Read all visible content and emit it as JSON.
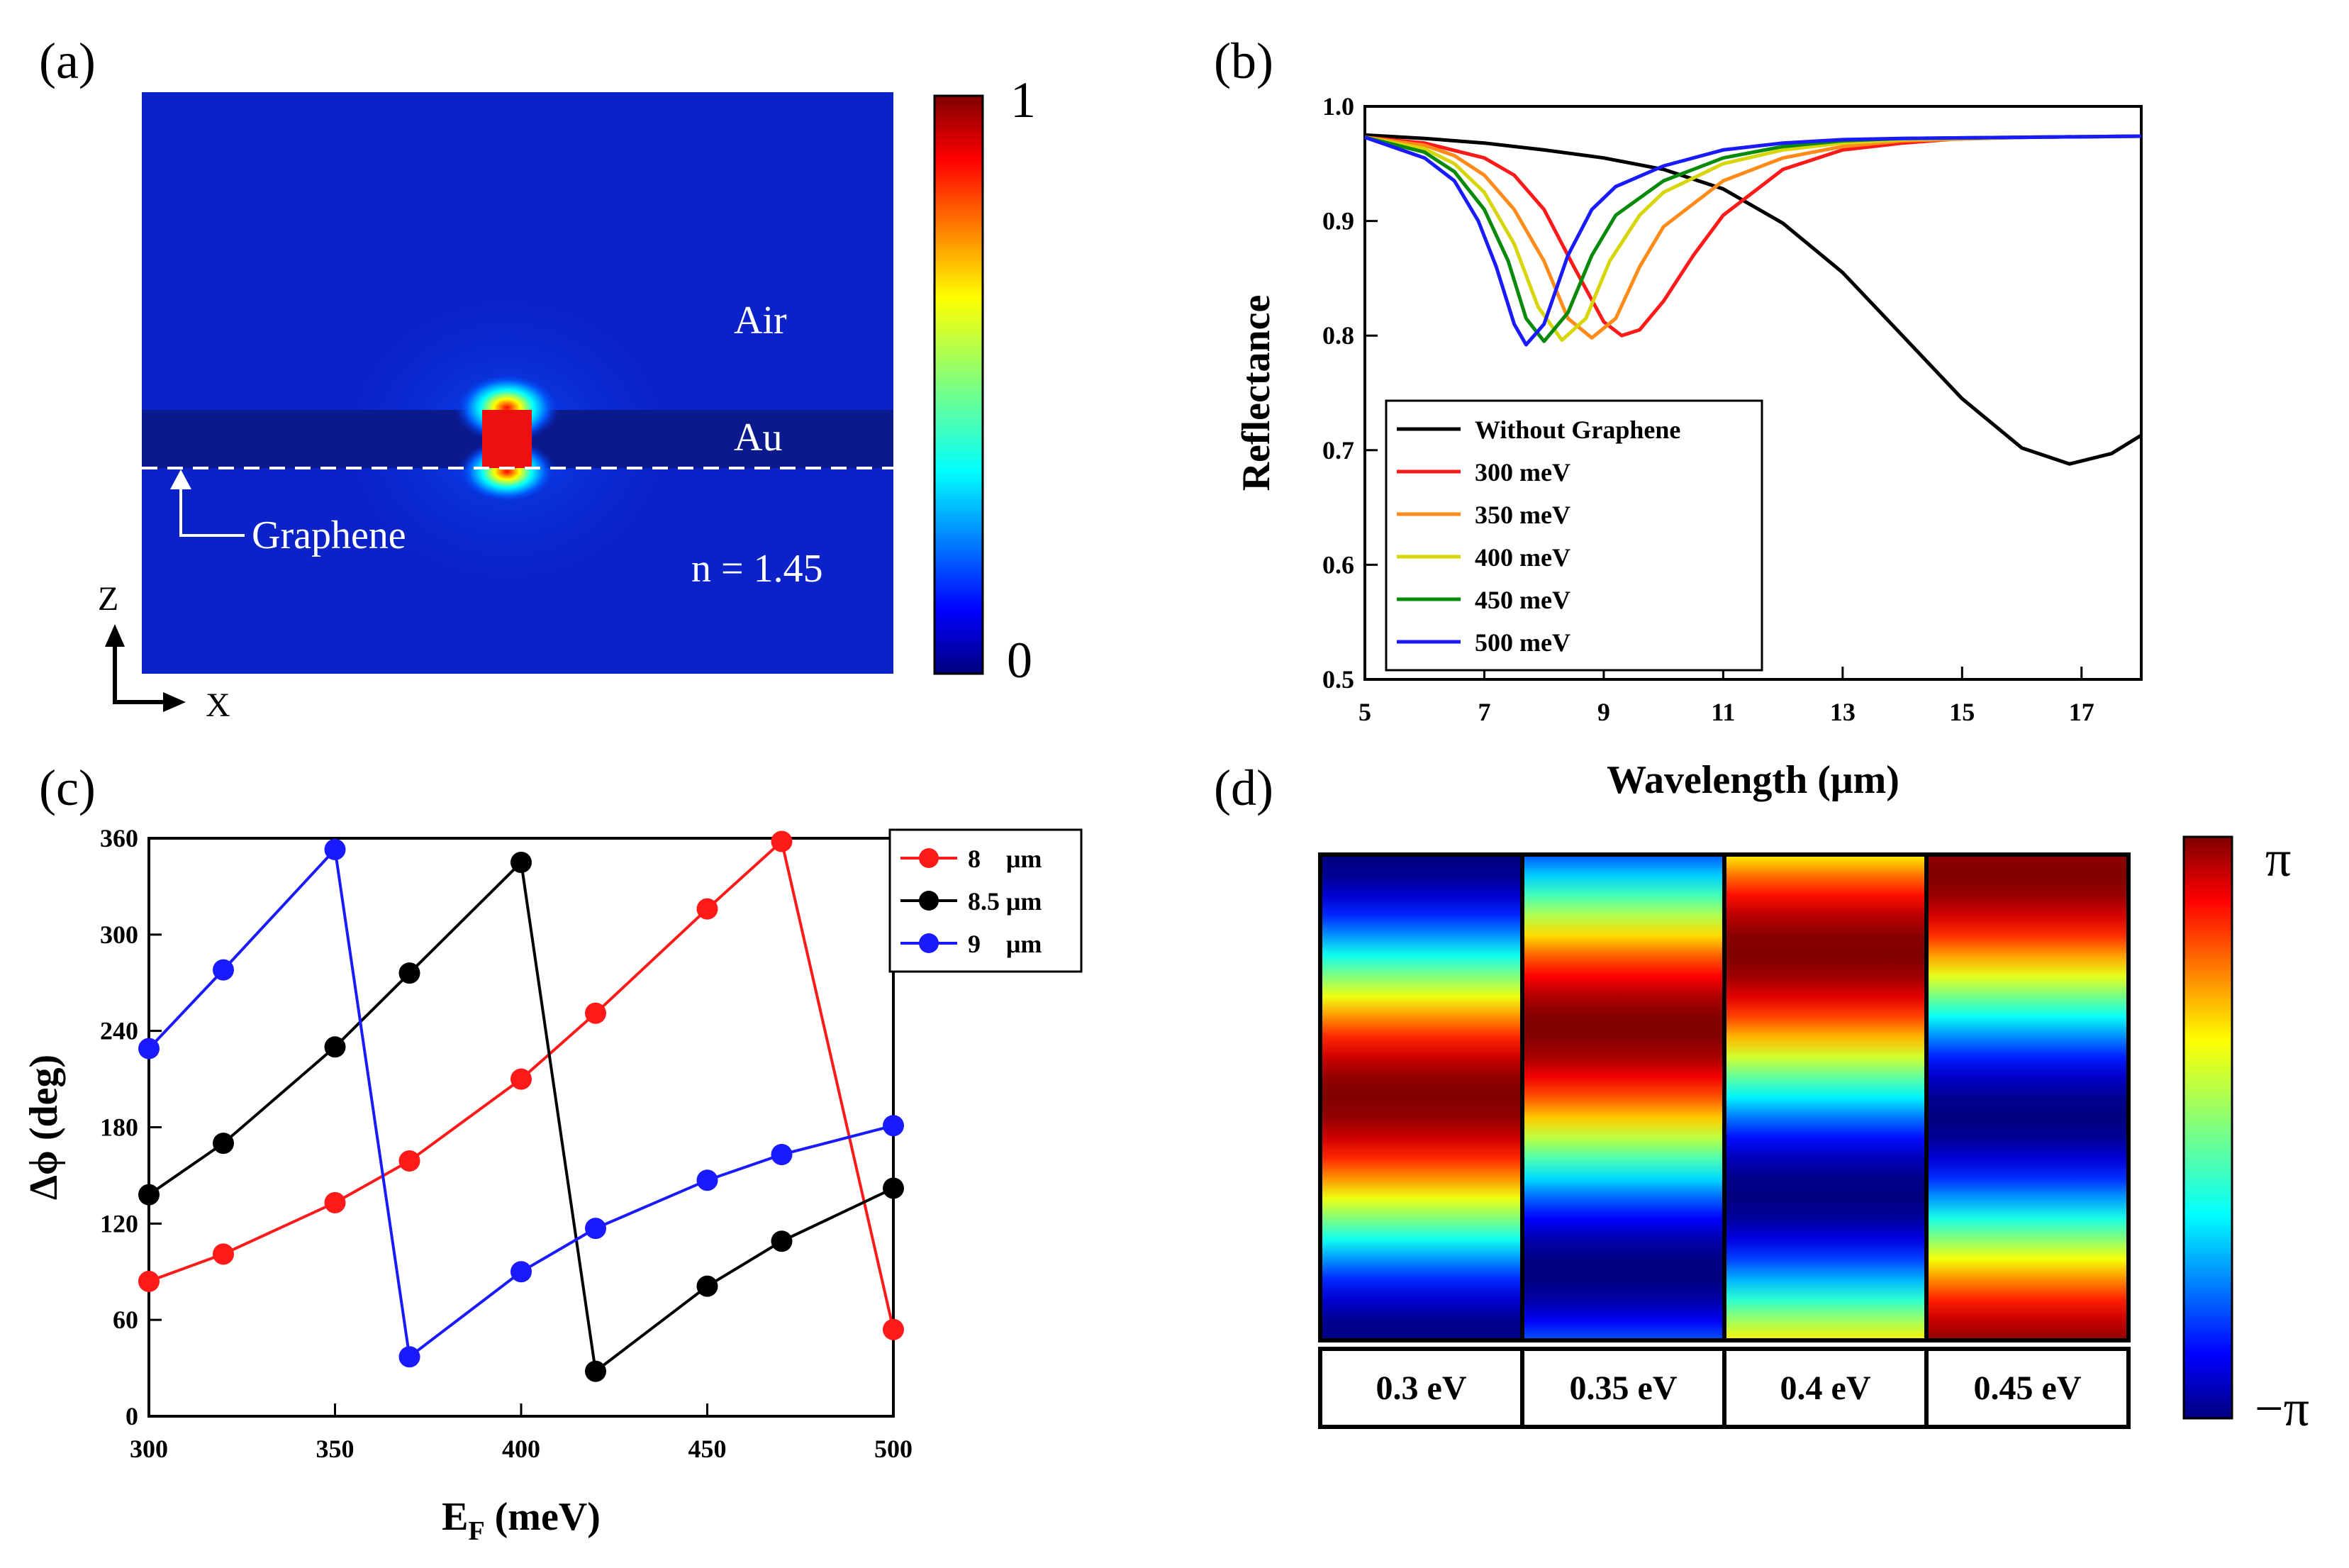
{
  "colors": {
    "black": "#000000",
    "red": "#ff1a1a",
    "orange": "#ff8c1a",
    "yellow": "#d6d60a",
    "green": "#0a8a0a",
    "blue": "#1a1aff",
    "field_bg": "#0a22c8",
    "au_band": "#0a1a8c"
  },
  "panel_a": {
    "label": "(a)",
    "air": "Air",
    "au": "Au",
    "graphene": "Graphene",
    "substrate": "n = 1.45",
    "axis_z": "Z",
    "axis_x": "X",
    "colorbar_max": "1",
    "colorbar_min": "0"
  },
  "panel_d": {
    "label": "(d)",
    "colorbar_max": "π",
    "colorbar_min": "−π",
    "columns": [
      {
        "label": "0.3 eV",
        "phase_offset": 0.0
      },
      {
        "label": "0.35 eV",
        "phase_offset": 0.9
      },
      {
        "label": "0.4 eV",
        "phase_offset": 1.9
      },
      {
        "label": "0.45 eV",
        "phase_offset": 2.9
      }
    ]
  },
  "chart_data": [
    {
      "panel": "(b)",
      "type": "line",
      "title": "",
      "xlabel": "Wavelength (μm)",
      "ylabel": "Reflectance",
      "xlim": [
        5,
        18
      ],
      "ylim": [
        0.5,
        1.0
      ],
      "xticks": [
        5,
        7,
        9,
        11,
        13,
        15,
        17
      ],
      "yticks": [
        0.5,
        0.6,
        0.7,
        0.8,
        0.9,
        1.0
      ],
      "legend_position": "bottom-left",
      "series": [
        {
          "name": "Without Graphene",
          "color": "#000000",
          "x": [
            5,
            6,
            7,
            8,
            9,
            10,
            11,
            12,
            13,
            14,
            15,
            16,
            16.8,
            17.5,
            18
          ],
          "y": [
            0.975,
            0.972,
            0.968,
            0.962,
            0.955,
            0.945,
            0.928,
            0.898,
            0.855,
            0.8,
            0.745,
            0.702,
            0.688,
            0.697,
            0.713
          ]
        },
        {
          "name": "300 meV",
          "color": "#ff1a1a",
          "x": [
            5,
            6,
            7,
            7.5,
            8,
            8.5,
            9,
            9.3,
            9.6,
            10,
            10.5,
            11,
            12,
            13,
            14,
            15,
            16,
            18
          ],
          "y": [
            0.973,
            0.968,
            0.955,
            0.94,
            0.91,
            0.86,
            0.812,
            0.8,
            0.805,
            0.83,
            0.87,
            0.905,
            0.945,
            0.962,
            0.968,
            0.972,
            0.973,
            0.974
          ]
        },
        {
          "name": "350 meV",
          "color": "#ff8c1a",
          "x": [
            5,
            6,
            6.5,
            7,
            7.5,
            8,
            8.4,
            8.8,
            9.2,
            9.6,
            10,
            11,
            12,
            13,
            14,
            16,
            18
          ],
          "y": [
            0.973,
            0.966,
            0.957,
            0.94,
            0.91,
            0.865,
            0.815,
            0.798,
            0.815,
            0.86,
            0.895,
            0.935,
            0.955,
            0.965,
            0.97,
            0.973,
            0.974
          ]
        },
        {
          "name": "400 meV",
          "color": "#d6d60a",
          "x": [
            5,
            6,
            6.5,
            7,
            7.5,
            7.9,
            8.3,
            8.7,
            9.1,
            9.6,
            10,
            11,
            12,
            13,
            14,
            16,
            18
          ],
          "y": [
            0.973,
            0.963,
            0.95,
            0.925,
            0.88,
            0.825,
            0.796,
            0.815,
            0.865,
            0.905,
            0.925,
            0.95,
            0.962,
            0.968,
            0.971,
            0.973,
            0.974
          ]
        },
        {
          "name": "450 meV",
          "color": "#0a8a0a",
          "x": [
            5,
            6,
            6.5,
            7,
            7.4,
            7.7,
            8.0,
            8.4,
            8.8,
            9.2,
            10,
            11,
            12,
            13,
            14,
            16,
            18
          ],
          "y": [
            0.973,
            0.96,
            0.943,
            0.91,
            0.865,
            0.815,
            0.795,
            0.82,
            0.87,
            0.905,
            0.935,
            0.955,
            0.965,
            0.97,
            0.972,
            0.973,
            0.974
          ]
        },
        {
          "name": "500 meV",
          "color": "#1a1aff",
          "x": [
            5,
            6,
            6.5,
            6.9,
            7.2,
            7.5,
            7.7,
            8.0,
            8.4,
            8.8,
            9.2,
            10,
            11,
            12,
            13,
            14,
            16,
            18
          ],
          "y": [
            0.973,
            0.955,
            0.935,
            0.9,
            0.86,
            0.81,
            0.792,
            0.81,
            0.87,
            0.91,
            0.93,
            0.948,
            0.962,
            0.968,
            0.971,
            0.972,
            0.973,
            0.974
          ]
        }
      ]
    },
    {
      "panel": "(c)",
      "type": "line",
      "title": "",
      "xlabel": "E",
      "xlabel_sub": "F",
      "xlabel_unit": " (meV)",
      "ylabel": "Δϕ (deg)",
      "xlim": [
        300,
        500
      ],
      "ylim": [
        0,
        360
      ],
      "xticks": [
        300,
        350,
        400,
        450,
        500
      ],
      "yticks": [
        0,
        60,
        120,
        180,
        240,
        300,
        360
      ],
      "legend_position": "top-right",
      "series": [
        {
          "name": "8    μm",
          "color": "#ff1a1a",
          "x": [
            300,
            320,
            350,
            370,
            400,
            420,
            450,
            470,
            500
          ],
          "y": [
            84,
            101,
            133,
            159,
            210,
            251,
            316,
            358,
            54
          ]
        },
        {
          "name": "8.5 μm",
          "color": "#000000",
          "x": [
            300,
            320,
            350,
            370,
            400,
            420,
            450,
            470,
            500
          ],
          "y": [
            138,
            170,
            230,
            276,
            345,
            28,
            81,
            109,
            142
          ]
        },
        {
          "name": "9    μm",
          "color": "#1a1aff",
          "x": [
            300,
            320,
            350,
            370,
            400,
            420,
            450,
            470,
            500
          ],
          "y": [
            229,
            278,
            353,
            37,
            90,
            117,
            147,
            163,
            181
          ]
        }
      ]
    }
  ]
}
